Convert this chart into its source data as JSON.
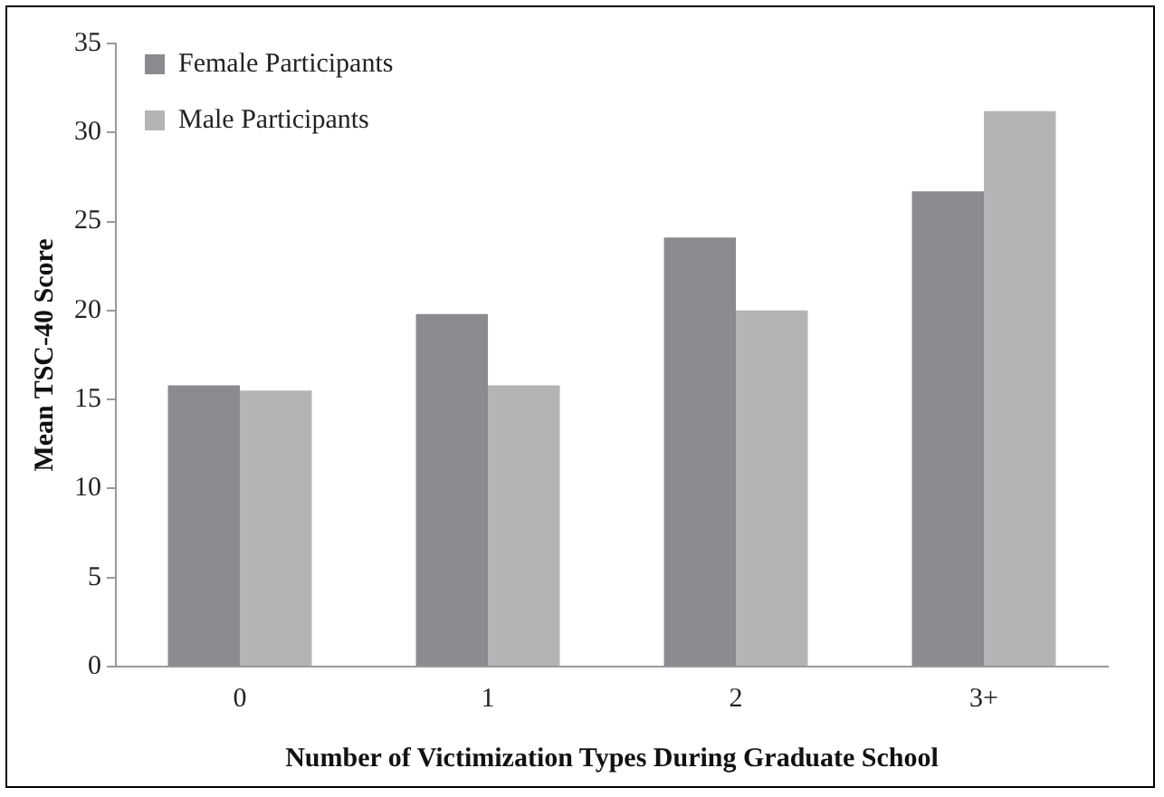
{
  "chart_data": {
    "type": "bar",
    "xlabel": "Number of Victimization Types During Graduate School",
    "ylabel": "Mean TSC-40 Score",
    "categories": [
      "0",
      "1",
      "2",
      "3+"
    ],
    "series": [
      {
        "name": "Female Participants",
        "color": "#8a8b8f",
        "values": [
          15.8,
          19.8,
          24.1,
          26.7
        ]
      },
      {
        "name": "Male Participants",
        "color": "#b4b4b6",
        "values": [
          15.5,
          15.8,
          20.0,
          31.2
        ]
      }
    ],
    "ylim": [
      0,
      35
    ],
    "yticks": [
      0,
      5,
      10,
      15,
      20,
      25,
      30,
      35
    ],
    "grid": false,
    "legend": "top left"
  }
}
